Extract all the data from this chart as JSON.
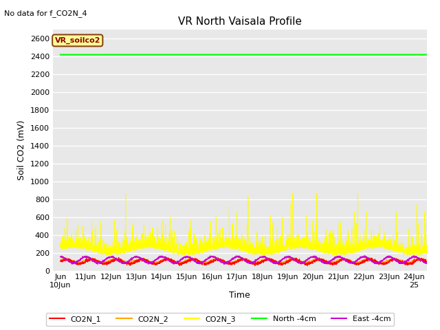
{
  "title": "VR North Vaisala Profile",
  "no_data_label": "No data for f_CO2N_4",
  "ylabel": "Soil CO2 (mV)",
  "xlabel": "Time",
  "legend_label": "VR_soilco2",
  "ylim": [
    0,
    2700
  ],
  "yticks": [
    0,
    200,
    400,
    600,
    800,
    1000,
    1200,
    1400,
    1600,
    1800,
    2000,
    2200,
    2400,
    2600
  ],
  "xlim": [
    -0.3,
    14.5
  ],
  "xtick_positions": [
    0,
    1,
    2,
    3,
    4,
    5,
    6,
    7,
    8,
    9,
    10,
    11,
    12,
    13,
    14
  ],
  "xtick_labels": [
    "Jun\n10Jun",
    "11Jun",
    "12Jun",
    "13Jun",
    "14Jun",
    "15Jun",
    "16Jun",
    "17Jun",
    "18Jun",
    "19Jun",
    "20Jun",
    "21Jun",
    "22Jun",
    "23Jun",
    "24Jun\n25"
  ],
  "fig_bg_color": "#ffffff",
  "plot_bg_color": "#e8e8e8",
  "grid_color": "#ffffff",
  "series": [
    {
      "name": "CO2N_1",
      "color": "#ff0000"
    },
    {
      "name": "CO2N_2",
      "color": "#ffa500"
    },
    {
      "name": "CO2N_3",
      "color": "#ffff00"
    },
    {
      "name": "North -4cm",
      "color": "#00ff00"
    },
    {
      "name": "East -4cm",
      "color": "#cc00cc"
    }
  ],
  "north_value": 2420,
  "seed": 42,
  "n_points": 3000
}
